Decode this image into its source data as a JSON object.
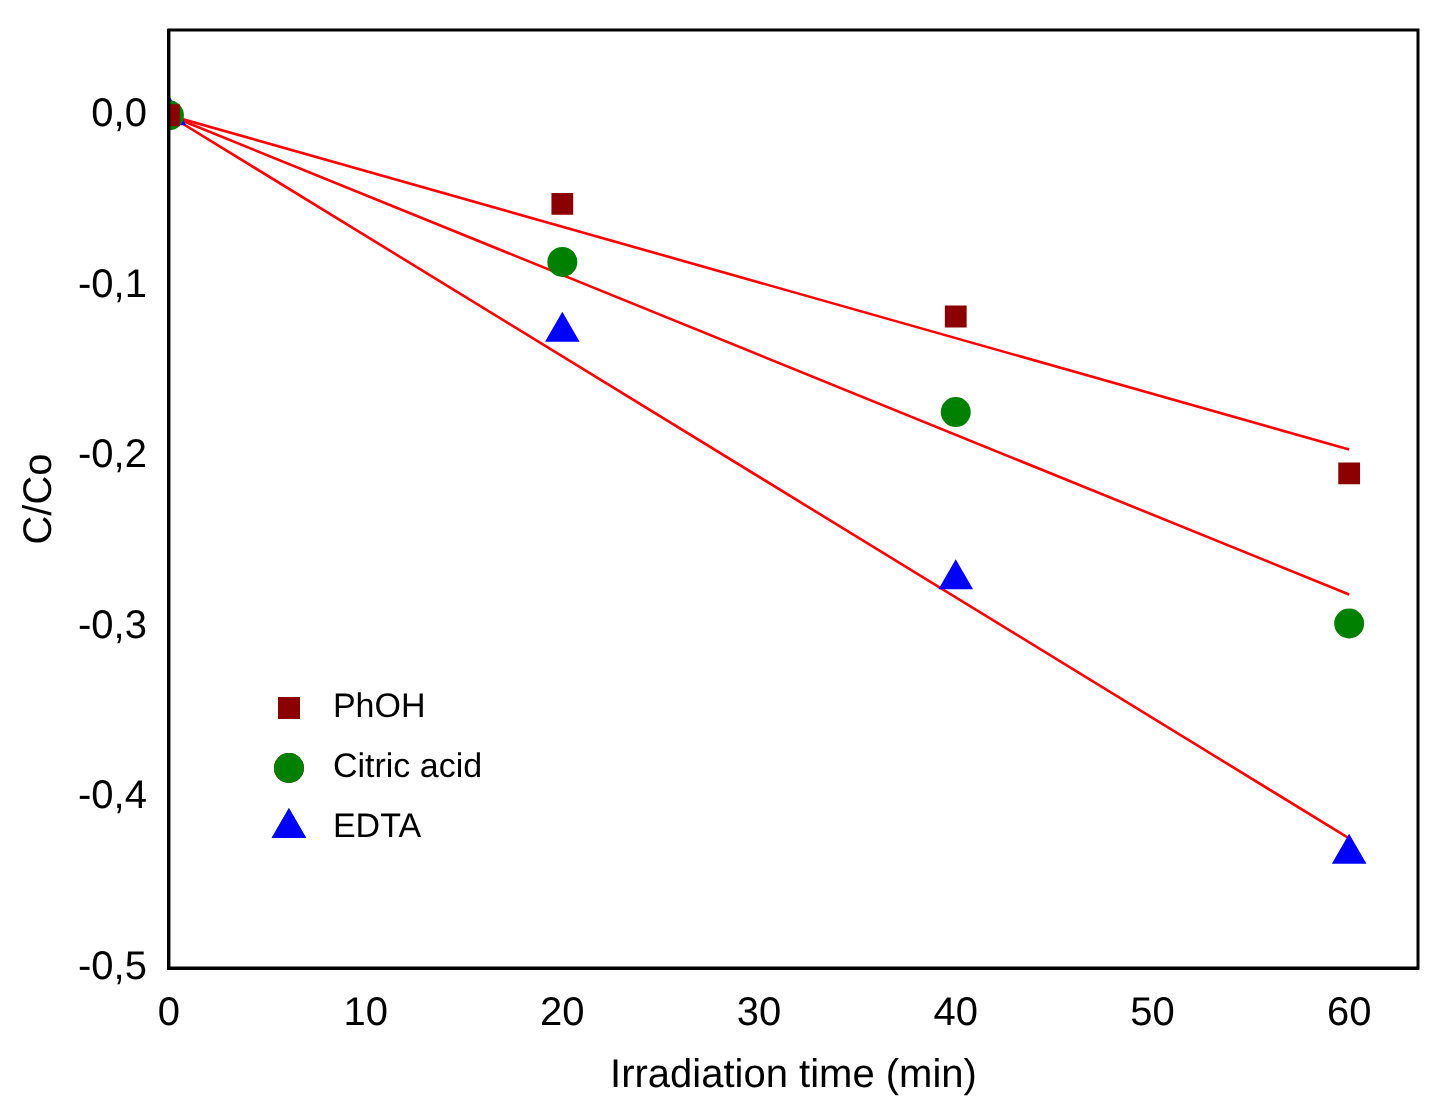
{
  "chart_data": {
    "type": "scatter",
    "xlabel": "Irradiation time (min)",
    "ylabel": "C/Co",
    "xlim": [
      0,
      63.5
    ],
    "xticks": [
      0,
      10,
      20,
      30,
      40,
      50,
      60
    ],
    "ylim": [
      -0.5,
      0.05
    ],
    "yticks": [
      {
        "value": 0,
        "label": "0,0"
      },
      {
        "value": -0.1,
        "label": "-0,1"
      },
      {
        "value": -0.2,
        "label": "-0,2"
      },
      {
        "value": -0.3,
        "label": "-0,3"
      },
      {
        "value": -0.4,
        "label": "-0,4"
      },
      {
        "value": -0.5,
        "label": "-0,5"
      }
    ],
    "grid": false,
    "legend": "bottom left",
    "series": [
      {
        "name": "PhOH",
        "color": "#8b0000",
        "marker": "square",
        "x": [
          0,
          20,
          40,
          60
        ],
        "values": [
          0,
          -0.052,
          -0.118,
          -0.21
        ]
      },
      {
        "name": "Citric acid",
        "color": "#008000",
        "marker": "circle",
        "x": [
          0,
          20,
          40,
          60
        ],
        "values": [
          0,
          -0.086,
          -0.174,
          -0.298
        ]
      },
      {
        "name": "EDTA",
        "color": "#0000ff",
        "marker": "triangle",
        "x": [
          0,
          20,
          40,
          60
        ],
        "values": [
          0,
          -0.127,
          -0.272,
          -0.433
        ]
      },
      {
        "type": "line",
        "color": "#ff0000",
        "marker": "none",
        "x": [
          0,
          60
        ],
        "values": [
          0,
          -0.196
        ]
      },
      {
        "type": "line",
        "color": "#ff0000",
        "marker": "none",
        "x": [
          0,
          60
        ],
        "values": [
          0,
          -0.281
        ]
      },
      {
        "type": "line",
        "color": "#ff0000",
        "marker": "none",
        "x": [
          0,
          60
        ],
        "values": [
          0,
          -0.424
        ]
      }
    ]
  }
}
